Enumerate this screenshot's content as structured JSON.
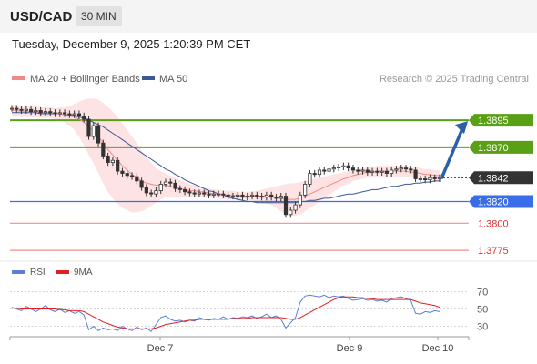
{
  "header": {
    "symbol": "USD/CAD",
    "timeframe": "30 MIN",
    "datetime": "Tuesday, December 9, 2025 1:20:39 PM CET"
  },
  "copyright": "Research © 2025 Trading Central",
  "colors": {
    "bollinger_fill": "#fde3e3",
    "ma20": "#f08a8a",
    "ma50": "#3b5998",
    "resistance": "#5aa016",
    "current": "#333333",
    "pivot": "#3a6ee8",
    "support": "#f58b8b",
    "arrow": "#2c5fa8",
    "rsi": "#5b7fd6",
    "rsi_ma": "#e02020"
  },
  "chart_data": [
    {
      "type": "candlestick",
      "legend": [
        {
          "name": "MA 20 + Bollinger Bands",
          "color": "#f08a8a"
        },
        {
          "name": "MA 50",
          "color": "#3b5998"
        }
      ],
      "x_ticks": [
        "Dec 7",
        "Dec 9",
        "Dec 10"
      ],
      "ylim": [
        1.3765,
        1.3922
      ],
      "levels": [
        {
          "label": "1.3895",
          "value": 1.3895,
          "kind": "resistance"
        },
        {
          "label": "1.3870",
          "value": 1.387,
          "kind": "resistance"
        },
        {
          "label": "1.3842",
          "value": 1.3842,
          "kind": "current"
        },
        {
          "label": "1.3820",
          "value": 1.382,
          "kind": "pivot"
        },
        {
          "label": "1.3800",
          "value": 1.38,
          "kind": "support"
        },
        {
          "label": "1.3775",
          "value": 1.3775,
          "kind": "support"
        }
      ],
      "close": [
        1.3906,
        1.3905,
        1.3904,
        1.3905,
        1.3903,
        1.3904,
        1.3902,
        1.3903,
        1.3902,
        1.3901,
        1.3902,
        1.3901,
        1.39,
        1.3901,
        1.3899,
        1.3896,
        1.388,
        1.389,
        1.3874,
        1.3862,
        1.3856,
        1.3858,
        1.3848,
        1.3846,
        1.3844,
        1.3843,
        1.3839,
        1.3833,
        1.3828,
        1.3827,
        1.383,
        1.3836,
        1.3838,
        1.3837,
        1.3832,
        1.3831,
        1.3829,
        1.3828,
        1.3827,
        1.3828,
        1.3827,
        1.3826,
        1.3827,
        1.3827,
        1.3826,
        1.3825,
        1.3825,
        1.3826,
        1.3824,
        1.3825,
        1.3826,
        1.3825,
        1.3824,
        1.3826,
        1.3824,
        1.3823,
        1.3825,
        1.3808,
        1.3812,
        1.3817,
        1.3826,
        1.3836,
        1.3846,
        1.3845,
        1.3849,
        1.3848,
        1.385,
        1.3851,
        1.3852,
        1.3853,
        1.3851,
        1.3849,
        1.3848,
        1.3849,
        1.3847,
        1.3848,
        1.3847,
        1.3848,
        1.3846,
        1.3849,
        1.385,
        1.3851,
        1.385,
        1.3849,
        1.3841,
        1.3841,
        1.384,
        1.3842,
        1.3841,
        1.3842
      ],
      "ma20": [
        1.3904,
        1.3904,
        1.3903,
        1.3903,
        1.3903,
        1.3903,
        1.3902,
        1.3902,
        1.3902,
        1.3901,
        1.3901,
        1.39,
        1.3899,
        1.3898,
        1.3896,
        1.3893,
        1.3889,
        1.3885,
        1.388,
        1.3874,
        1.3868,
        1.3863,
        1.3858,
        1.3853,
        1.3849,
        1.3845,
        1.3842,
        1.3839,
        1.3837,
        1.3836,
        1.3835,
        1.3835,
        1.3835,
        1.3834,
        1.3833,
        1.3832,
        1.3831,
        1.383,
        1.383,
        1.3829,
        1.3829,
        1.3828,
        1.3827,
        1.3827,
        1.3826,
        1.3826,
        1.3826,
        1.3825,
        1.3825,
        1.3825,
        1.3825,
        1.3825,
        1.3825,
        1.3825,
        1.3825,
        1.3824,
        1.3823,
        1.3822,
        1.3822,
        1.3822,
        1.3823,
        1.3825,
        1.3827,
        1.3829,
        1.3831,
        1.3833,
        1.3835,
        1.3837,
        1.3839,
        1.3841,
        1.3842,
        1.3844,
        1.3845,
        1.3846,
        1.3847,
        1.3847,
        1.3848,
        1.3848,
        1.3848,
        1.3848,
        1.3848,
        1.3848,
        1.3848,
        1.3847,
        1.3847,
        1.3846,
        1.3845,
        1.3845,
        1.3844,
        1.3844
      ],
      "bb_width": [
        0.0005,
        0.0005,
        0.0005,
        0.0005,
        0.0005,
        0.0005,
        0.0005,
        0.0005,
        0.0005,
        0.0005,
        0.0006,
        0.0007,
        0.0009,
        0.0012,
        0.0016,
        0.0021,
        0.0026,
        0.003,
        0.0034,
        0.0037,
        0.0039,
        0.004,
        0.004,
        0.0039,
        0.0037,
        0.0035,
        0.0032,
        0.0028,
        0.0024,
        0.002,
        0.0016,
        0.0013,
        0.0011,
        0.001,
        0.0009,
        0.0008,
        0.0007,
        0.0006,
        0.0005,
        0.0005,
        0.0004,
        0.0004,
        0.0004,
        0.0004,
        0.0004,
        0.0004,
        0.0004,
        0.0004,
        0.0004,
        0.0004,
        0.0004,
        0.0005,
        0.0006,
        0.0007,
        0.0008,
        0.001,
        0.0012,
        0.0014,
        0.0015,
        0.0015,
        0.0015,
        0.0014,
        0.0013,
        0.0012,
        0.0011,
        0.001,
        0.0009,
        0.0008,
        0.0007,
        0.0006,
        0.0006,
        0.0005,
        0.0005,
        0.0005,
        0.0005,
        0.0005,
        0.0005,
        0.0005,
        0.0005,
        0.0005,
        0.0005,
        0.0005,
        0.0005,
        0.0005,
        0.0005,
        0.0005,
        0.0005,
        0.0005,
        0.0005,
        0.0005
      ],
      "ma50": [
        1.3902,
        1.3902,
        1.3902,
        1.3902,
        1.3902,
        1.3902,
        1.3901,
        1.3901,
        1.3901,
        1.3901,
        1.3901,
        1.39,
        1.39,
        1.3899,
        1.3898,
        1.3897,
        1.3895,
        1.3893,
        1.3891,
        1.3889,
        1.3886,
        1.3883,
        1.388,
        1.3877,
        1.3874,
        1.3871,
        1.3868,
        1.3865,
        1.3862,
        1.3859,
        1.3856,
        1.3853,
        1.385,
        1.3848,
        1.3845,
        1.3843,
        1.384,
        1.3838,
        1.3836,
        1.3834,
        1.3832,
        1.383,
        1.3829,
        1.3827,
        1.3826,
        1.3824,
        1.3823,
        1.3822,
        1.3821,
        1.382,
        1.382,
        1.3819,
        1.3819,
        1.3819,
        1.3819,
        1.3819,
        1.3819,
        1.3819,
        1.3819,
        1.3819,
        1.382,
        1.382,
        1.3821,
        1.3821,
        1.3822,
        1.3823,
        1.3823,
        1.3824,
        1.3825,
        1.3826,
        1.3827,
        1.3827,
        1.3828,
        1.3829,
        1.383,
        1.3831,
        1.3831,
        1.3832,
        1.3833,
        1.3834,
        1.3834,
        1.3835,
        1.3836,
        1.3836,
        1.3837,
        1.3837,
        1.3838,
        1.3838,
        1.3839,
        1.3839
      ],
      "forecast": {
        "from": 1.3842,
        "to": 1.3895
      }
    },
    {
      "type": "line",
      "legend": [
        {
          "name": "RSI",
          "color": "#5b7fd6"
        },
        {
          "name": "9MA",
          "color": "#e02020"
        }
      ],
      "ylim": [
        20,
        80
      ],
      "y_ticks": [
        "70",
        "50",
        "30"
      ],
      "series": [
        {
          "name": "RSI",
          "values": [
            52,
            50,
            48,
            53,
            50,
            47,
            50,
            54,
            49,
            47,
            50,
            46,
            48,
            45,
            47,
            43,
            26,
            30,
            25,
            28,
            26,
            27,
            25,
            30,
            27,
            25,
            29,
            26,
            28,
            24,
            32,
            40,
            42,
            38,
            36,
            37,
            35,
            37,
            36,
            40,
            38,
            37,
            39,
            38,
            41,
            38,
            40,
            39,
            41,
            40,
            42,
            39,
            41,
            44,
            40,
            42,
            38,
            28,
            34,
            40,
            58,
            65,
            66,
            65,
            64,
            66,
            63,
            65,
            64,
            65,
            62,
            60,
            61,
            62,
            60,
            61,
            59,
            60,
            58,
            62,
            63,
            64,
            62,
            60,
            45,
            44,
            47,
            46,
            48,
            47
          ]
        },
        {
          "name": "9MA",
          "values": [
            51,
            51,
            50,
            50,
            50,
            50,
            50,
            50,
            50,
            50,
            49,
            49,
            48,
            48,
            48,
            47,
            44,
            41,
            38,
            35,
            33,
            31,
            29,
            28,
            27,
            27,
            27,
            27,
            27,
            27,
            28,
            30,
            32,
            33,
            34,
            35,
            36,
            37,
            37,
            38,
            38,
            38,
            38,
            38,
            38,
            38,
            39,
            39,
            39,
            39,
            40,
            40,
            40,
            40,
            40,
            40,
            40,
            39,
            38,
            38,
            40,
            43,
            46,
            49,
            52,
            55,
            58,
            61,
            63,
            64,
            64,
            64,
            63,
            63,
            62,
            62,
            61,
            61,
            61,
            61,
            61,
            61,
            61,
            61,
            59,
            57,
            56,
            55,
            54,
            52
          ]
        }
      ]
    }
  ]
}
